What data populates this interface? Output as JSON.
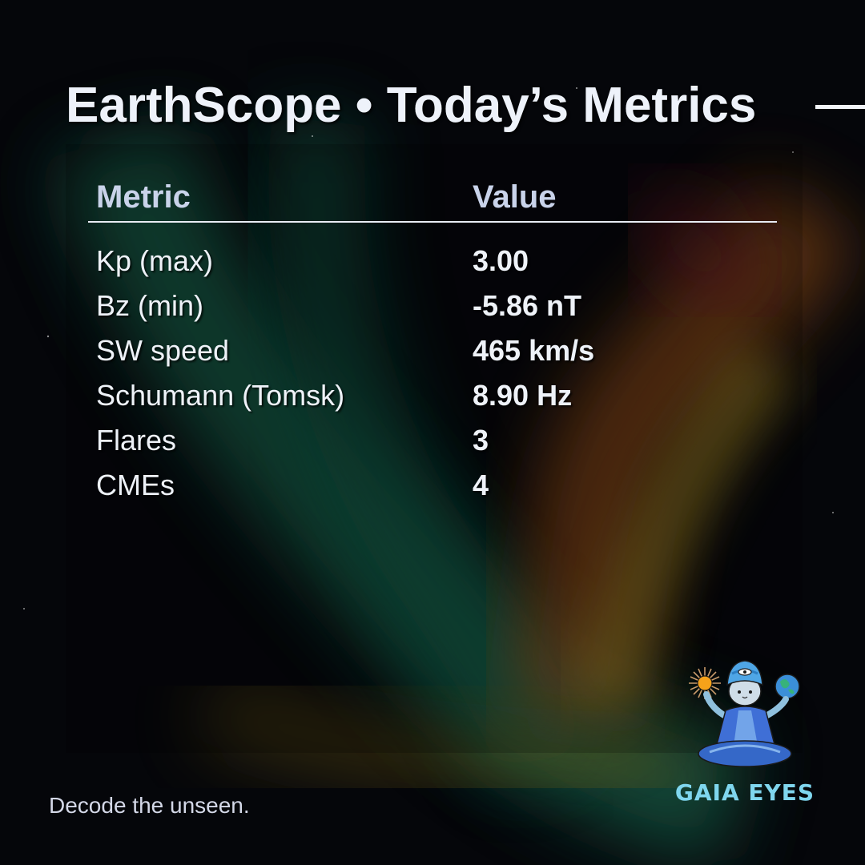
{
  "header": {
    "title": "EarthScope • Today’s Metrics"
  },
  "table": {
    "columns": [
      "Metric",
      "Value"
    ],
    "rows": [
      {
        "metric": "Kp (max)",
        "value": "3.00"
      },
      {
        "metric": "Bz (min)",
        "value": "-5.86 nT"
      },
      {
        "metric": "SW speed",
        "value": "465 km/s"
      },
      {
        "metric": "Schumann (Tomsk)",
        "value": "8.90 Hz"
      },
      {
        "metric": "Flares",
        "value": "3"
      },
      {
        "metric": "CMEs",
        "value": "4"
      }
    ]
  },
  "footer": {
    "tagline": "Decode the unseen."
  },
  "brand": {
    "name": "GAIA EYES",
    "logo_icon": "meditating-cat-logo-icon"
  },
  "colors": {
    "background": "#05060a",
    "brand_text": "#7fd6ee",
    "header_text": "#c9d3ea"
  }
}
